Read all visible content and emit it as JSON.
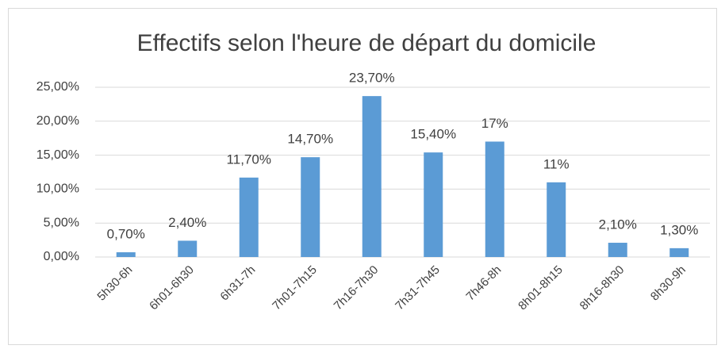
{
  "chart_data": {
    "type": "bar",
    "title": "Effectifs selon l'heure de départ du domicile",
    "categories": [
      "5h30-6h",
      "6h01-6h30",
      "6h31-7h",
      "7h01-7h15",
      "7h16-7h30",
      "7h31-7h45",
      "7h46-8h",
      "8h01-8h15",
      "8h16-8h30",
      "8h30-9h"
    ],
    "values": [
      0.7,
      2.4,
      11.7,
      14.7,
      23.7,
      15.4,
      17,
      11,
      2.1,
      1.3
    ],
    "value_labels": [
      "0,70%",
      "2,40%",
      "11,70%",
      "14,70%",
      "23,70%",
      "15,40%",
      "17%",
      "11%",
      "2,10%",
      "1,30%"
    ],
    "color": "#5b9bd5",
    "ylim": [
      0,
      25
    ],
    "yticks": [
      {
        "value": 0,
        "label": "0,00%"
      },
      {
        "value": 5,
        "label": "5,00%"
      },
      {
        "value": 10,
        "label": "10,00%"
      },
      {
        "value": 15,
        "label": "15,00%"
      },
      {
        "value": 20,
        "label": "20,00%"
      },
      {
        "value": 25,
        "label": "25,00%"
      }
    ],
    "grid": true
  }
}
